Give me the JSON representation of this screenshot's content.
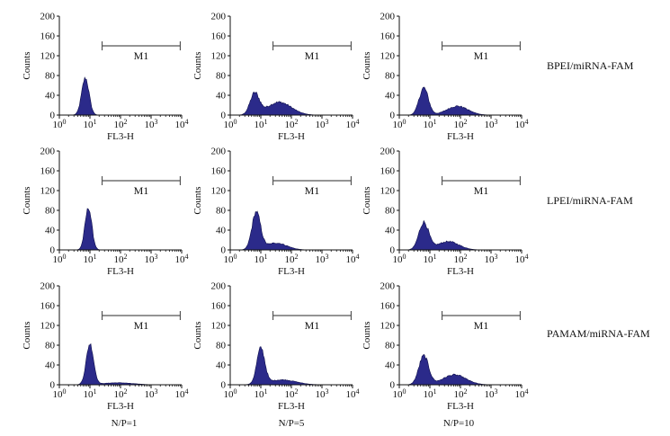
{
  "figure": {
    "row_labels": [
      "BPEI/miRNA-FAM",
      "LPEI/miRNA-FAM",
      "PAMAM/miRNA-FAM"
    ],
    "col_labels": [
      "N/P=1",
      "N/P=5",
      "N/P=10"
    ]
  },
  "colors": {
    "fill": "#2b2a8a",
    "stroke": "#0c0c4a",
    "gate": "#555555",
    "axis": "#111111"
  },
  "chart_data": [
    {
      "type": "histogram",
      "row": "BPEI/miRNA-FAM",
      "col": "N/P=1",
      "xlabel": "FL3-H",
      "ylabel": "Counts",
      "xscale": "log",
      "xlim": [
        1,
        10000
      ],
      "ylim": [
        0,
        200
      ],
      "yticks": [
        0,
        40,
        80,
        120,
        160,
        200
      ],
      "xticks": [
        "10^0",
        "10^1",
        "10^2",
        "10^3",
        "10^4"
      ],
      "gate": {
        "label": "M1",
        "start": 25,
        "end": 9000,
        "y": 140
      },
      "components": [
        {
          "mu": 0.85,
          "sigma": 0.12,
          "height": 75
        }
      ]
    },
    {
      "type": "histogram",
      "row": "BPEI/miRNA-FAM",
      "col": "N/P=5",
      "xlabel": "FL3-H",
      "ylabel": "Counts",
      "xscale": "log",
      "xlim": [
        1,
        10000
      ],
      "ylim": [
        0,
        200
      ],
      "yticks": [
        0,
        40,
        80,
        120,
        160,
        200
      ],
      "xticks": [
        "10^0",
        "10^1",
        "10^2",
        "10^3",
        "10^4"
      ],
      "gate": {
        "label": "M1",
        "start": 25,
        "end": 9000,
        "y": 140
      },
      "components": [
        {
          "mu": 0.8,
          "sigma": 0.15,
          "height": 42
        },
        {
          "mu": 1.6,
          "sigma": 0.4,
          "height": 26
        }
      ]
    },
    {
      "type": "histogram",
      "row": "BPEI/miRNA-FAM",
      "col": "N/P=10",
      "xlabel": "FL3-H",
      "ylabel": "Counts",
      "xscale": "log",
      "xlim": [
        1,
        10000
      ],
      "ylim": [
        0,
        200
      ],
      "yticks": [
        0,
        40,
        80,
        120,
        160,
        200
      ],
      "xticks": [
        "10^0",
        "10^1",
        "10^2",
        "10^3",
        "10^4"
      ],
      "gate": {
        "label": "M1",
        "start": 25,
        "end": 9000,
        "y": 140
      },
      "components": [
        {
          "mu": 0.8,
          "sigma": 0.15,
          "height": 55
        },
        {
          "mu": 1.9,
          "sigma": 0.35,
          "height": 18
        }
      ]
    },
    {
      "type": "histogram",
      "row": "LPEI/miRNA-FAM",
      "col": "N/P=1",
      "xlabel": "FL3-H",
      "ylabel": "Counts",
      "xscale": "log",
      "xlim": [
        1,
        10000
      ],
      "ylim": [
        0,
        200
      ],
      "yticks": [
        0,
        40,
        80,
        120,
        160,
        200
      ],
      "xticks": [
        "10^0",
        "10^1",
        "10^2",
        "10^3",
        "10^4"
      ],
      "gate": {
        "label": "M1",
        "start": 25,
        "end": 9000,
        "y": 140
      },
      "components": [
        {
          "mu": 0.95,
          "sigma": 0.11,
          "height": 85
        }
      ]
    },
    {
      "type": "histogram",
      "row": "LPEI/miRNA-FAM",
      "col": "N/P=5",
      "xlabel": "FL3-H",
      "ylabel": "Counts",
      "xscale": "log",
      "xlim": [
        1,
        10000
      ],
      "ylim": [
        0,
        200
      ],
      "yticks": [
        0,
        40,
        80,
        120,
        160,
        200
      ],
      "xticks": [
        "10^0",
        "10^1",
        "10^2",
        "10^3",
        "10^4"
      ],
      "gate": {
        "label": "M1",
        "start": 25,
        "end": 9000,
        "y": 140
      },
      "components": [
        {
          "mu": 0.85,
          "sigma": 0.14,
          "height": 75
        },
        {
          "mu": 1.5,
          "sigma": 0.35,
          "height": 14
        }
      ]
    },
    {
      "type": "histogram",
      "row": "LPEI/miRNA-FAM",
      "col": "N/P=10",
      "xlabel": "FL3-H",
      "ylabel": "Counts",
      "xscale": "log",
      "xlim": [
        1,
        10000
      ],
      "ylim": [
        0,
        200
      ],
      "yticks": [
        0,
        40,
        80,
        120,
        160,
        200
      ],
      "xticks": [
        "10^0",
        "10^1",
        "10^2",
        "10^3",
        "10^4"
      ],
      "gate": {
        "label": "M1",
        "start": 25,
        "end": 9000,
        "y": 140
      },
      "components": [
        {
          "mu": 0.8,
          "sigma": 0.16,
          "height": 55
        },
        {
          "mu": 1.6,
          "sigma": 0.35,
          "height": 17
        }
      ]
    },
    {
      "type": "histogram",
      "row": "PAMAM/miRNA-FAM",
      "col": "N/P=1",
      "xlabel": "FL3-H",
      "ylabel": "Counts",
      "xscale": "log",
      "xlim": [
        1,
        10000
      ],
      "ylim": [
        0,
        200
      ],
      "yticks": [
        0,
        40,
        80,
        120,
        160,
        200
      ],
      "xticks": [
        "10^0",
        "10^1",
        "10^2",
        "10^3",
        "10^4"
      ],
      "gate": {
        "label": "M1",
        "start": 25,
        "end": 9000,
        "y": 140
      },
      "components": [
        {
          "mu": 1.0,
          "sigma": 0.12,
          "height": 82
        },
        {
          "mu": 1.9,
          "sigma": 0.5,
          "height": 4
        }
      ]
    },
    {
      "type": "histogram",
      "row": "PAMAM/miRNA-FAM",
      "col": "N/P=5",
      "xlabel": "FL3-H",
      "ylabel": "Counts",
      "xscale": "log",
      "xlim": [
        1,
        10000
      ],
      "ylim": [
        0,
        200
      ],
      "yticks": [
        0,
        40,
        80,
        120,
        160,
        200
      ],
      "xticks": [
        "10^0",
        "10^1",
        "10^2",
        "10^3",
        "10^4"
      ],
      "gate": {
        "label": "M1",
        "start": 25,
        "end": 9000,
        "y": 140
      },
      "components": [
        {
          "mu": 1.0,
          "sigma": 0.13,
          "height": 72
        },
        {
          "mu": 1.7,
          "sigma": 0.45,
          "height": 10
        }
      ]
    },
    {
      "type": "histogram",
      "row": "PAMAM/miRNA-FAM",
      "col": "N/P=10",
      "xlabel": "FL3-H",
      "ylabel": "Counts",
      "xscale": "log",
      "xlim": [
        1,
        10000
      ],
      "ylim": [
        0,
        200
      ],
      "yticks": [
        0,
        40,
        80,
        120,
        160,
        200
      ],
      "xticks": [
        "10^0",
        "10^1",
        "10^2",
        "10^3",
        "10^4"
      ],
      "gate": {
        "label": "M1",
        "start": 25,
        "end": 9000,
        "y": 140
      },
      "components": [
        {
          "mu": 0.8,
          "sigma": 0.16,
          "height": 58
        },
        {
          "mu": 1.8,
          "sigma": 0.38,
          "height": 20
        }
      ]
    }
  ]
}
